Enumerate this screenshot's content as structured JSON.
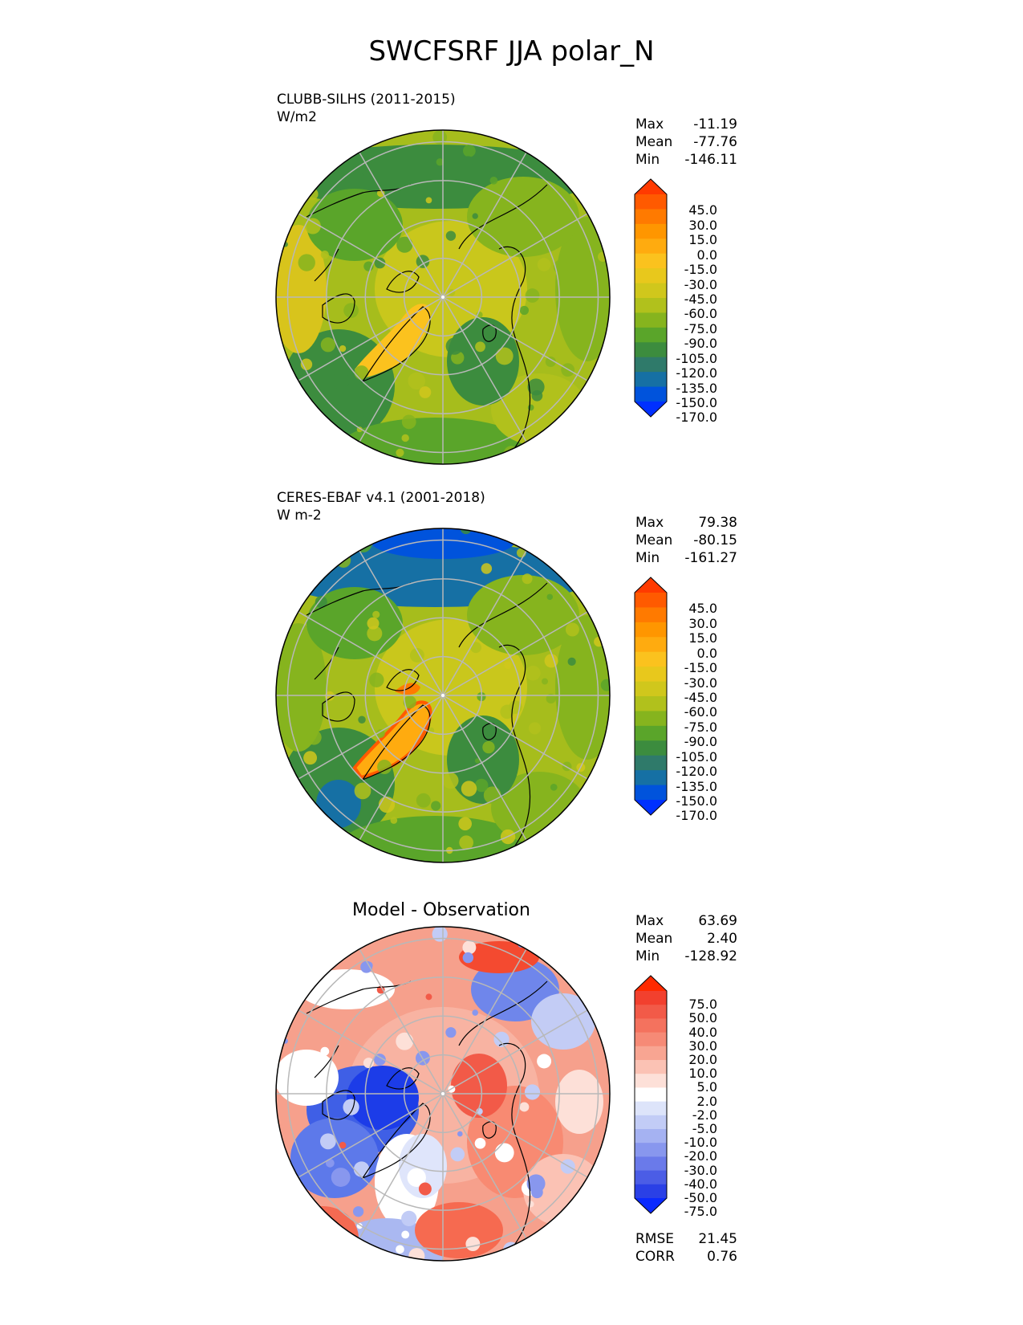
{
  "title": "SWCFSRF JJA polar_N",
  "panels": [
    {
      "id": "test",
      "title_lines": [
        "CLUBB-SILHS (2011-2015)",
        "W/m2"
      ],
      "stats": [
        {
          "label": "Max",
          "value": "-11.19"
        },
        {
          "label": "Mean",
          "value": "-77.76"
        },
        {
          "label": "Min",
          "value": "-146.11"
        }
      ],
      "colorbar": {
        "levels": [
          "45.0",
          "30.0",
          "15.0",
          "0.0",
          "-15.0",
          "-30.0",
          "-45.0",
          "-60.0",
          "-75.0",
          "-90.0",
          "-105.0",
          "-120.0",
          "-135.0",
          "-150.0",
          "-170.0"
        ],
        "colors": [
          "#ff3a00",
          "#ff5a00",
          "#ff7a00",
          "#ff9600",
          "#ffab0f",
          "#fbc21e",
          "#e8c81c",
          "#d0c71c",
          "#b1c11c",
          "#86b41e",
          "#5aa52a",
          "#3c8c3e",
          "#2f7a6a",
          "#1670a4",
          "#0053dc",
          "#0030ff"
        ]
      },
      "region": "polar_N"
    },
    {
      "id": "reference",
      "title_lines": [
        "CERES-EBAF v4.1 (2001-2018)",
        "W m-2"
      ],
      "stats": [
        {
          "label": "Max",
          "value": "79.38"
        },
        {
          "label": "Mean",
          "value": "-80.15"
        },
        {
          "label": "Min",
          "value": "-161.27"
        }
      ],
      "colorbar": {
        "levels": [
          "45.0",
          "30.0",
          "15.0",
          "0.0",
          "-15.0",
          "-30.0",
          "-45.0",
          "-60.0",
          "-75.0",
          "-90.0",
          "-105.0",
          "-120.0",
          "-135.0",
          "-150.0",
          "-170.0"
        ],
        "colors": [
          "#ff3a00",
          "#ff5a00",
          "#ff7a00",
          "#ff9600",
          "#ffab0f",
          "#fbc21e",
          "#e8c81c",
          "#d0c71c",
          "#b1c11c",
          "#86b41e",
          "#5aa52a",
          "#3c8c3e",
          "#2f7a6a",
          "#1670a4",
          "#0053dc",
          "#0030ff"
        ]
      },
      "region": "polar_N"
    },
    {
      "id": "difference",
      "title_center": "Model - Observation",
      "stats": [
        {
          "label": "Max",
          "value": "63.69"
        },
        {
          "label": "Mean",
          "value": "2.40"
        },
        {
          "label": "Min",
          "value": "-128.92"
        }
      ],
      "metrics": [
        {
          "label": "RMSE",
          "value": "21.45"
        },
        {
          "label": "CORR",
          "value": "0.76"
        }
      ],
      "colorbar": {
        "levels": [
          "75.0",
          "50.0",
          "40.0",
          "30.0",
          "20.0",
          "10.0",
          "5.0",
          "2.0",
          "-2.0",
          "-5.0",
          "-10.0",
          "-20.0",
          "-30.0",
          "-40.0",
          "-50.0",
          "-75.0"
        ],
        "colors": [
          "#ff2a00",
          "#f2402e",
          "#f25a48",
          "#f4725e",
          "#f68a76",
          "#f8a592",
          "#fbc2b4",
          "#fde0d8",
          "#ffffff",
          "#dde4fa",
          "#c2ccf6",
          "#a5b2f2",
          "#8897ee",
          "#6a7aea",
          "#4b5de6",
          "#2a40e6",
          "#0a2aff"
        ]
      },
      "region": "polar_N"
    }
  ],
  "chart_data": [
    {
      "type": "heatmap",
      "projection": "north-polar-stereographic",
      "title": "CLUBB-SILHS (2011-2015)",
      "units": "W/m2",
      "variable": "SWCFSRF",
      "season": "JJA",
      "max": -11.19,
      "mean": -77.76,
      "min": -146.11,
      "contour_levels": [
        -170,
        -150,
        -135,
        -120,
        -105,
        -90,
        -75,
        -60,
        -45,
        -30,
        -15,
        0,
        15,
        30,
        45
      ]
    },
    {
      "type": "heatmap",
      "projection": "north-polar-stereographic",
      "title": "CERES-EBAF v4.1 (2001-2018)",
      "units": "W m-2",
      "variable": "SWCFSRF",
      "season": "JJA",
      "max": 79.38,
      "mean": -80.15,
      "min": -161.27,
      "contour_levels": [
        -170,
        -150,
        -135,
        -120,
        -105,
        -90,
        -75,
        -60,
        -45,
        -30,
        -15,
        0,
        15,
        30,
        45
      ]
    },
    {
      "type": "heatmap",
      "projection": "north-polar-stereographic",
      "title": "Model - Observation",
      "max": 63.69,
      "mean": 2.4,
      "min": -128.92,
      "rmse": 21.45,
      "corr": 0.76,
      "contour_levels": [
        -75,
        -50,
        -40,
        -30,
        -20,
        -10,
        -5,
        -2,
        2,
        5,
        10,
        20,
        30,
        40,
        50,
        75
      ]
    }
  ]
}
